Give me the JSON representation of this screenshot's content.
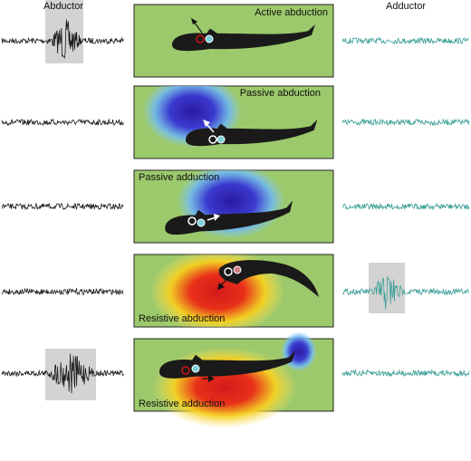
{
  "header": {
    "left": "Abductor",
    "right": "Adductor"
  },
  "panels": [
    {
      "label": "Active abduction"
    },
    {
      "label": "Passive abduction"
    },
    {
      "label": "Passive adduction"
    },
    {
      "label": "Resistive abduction"
    },
    {
      "label": "Resistive adduction"
    }
  ]
}
